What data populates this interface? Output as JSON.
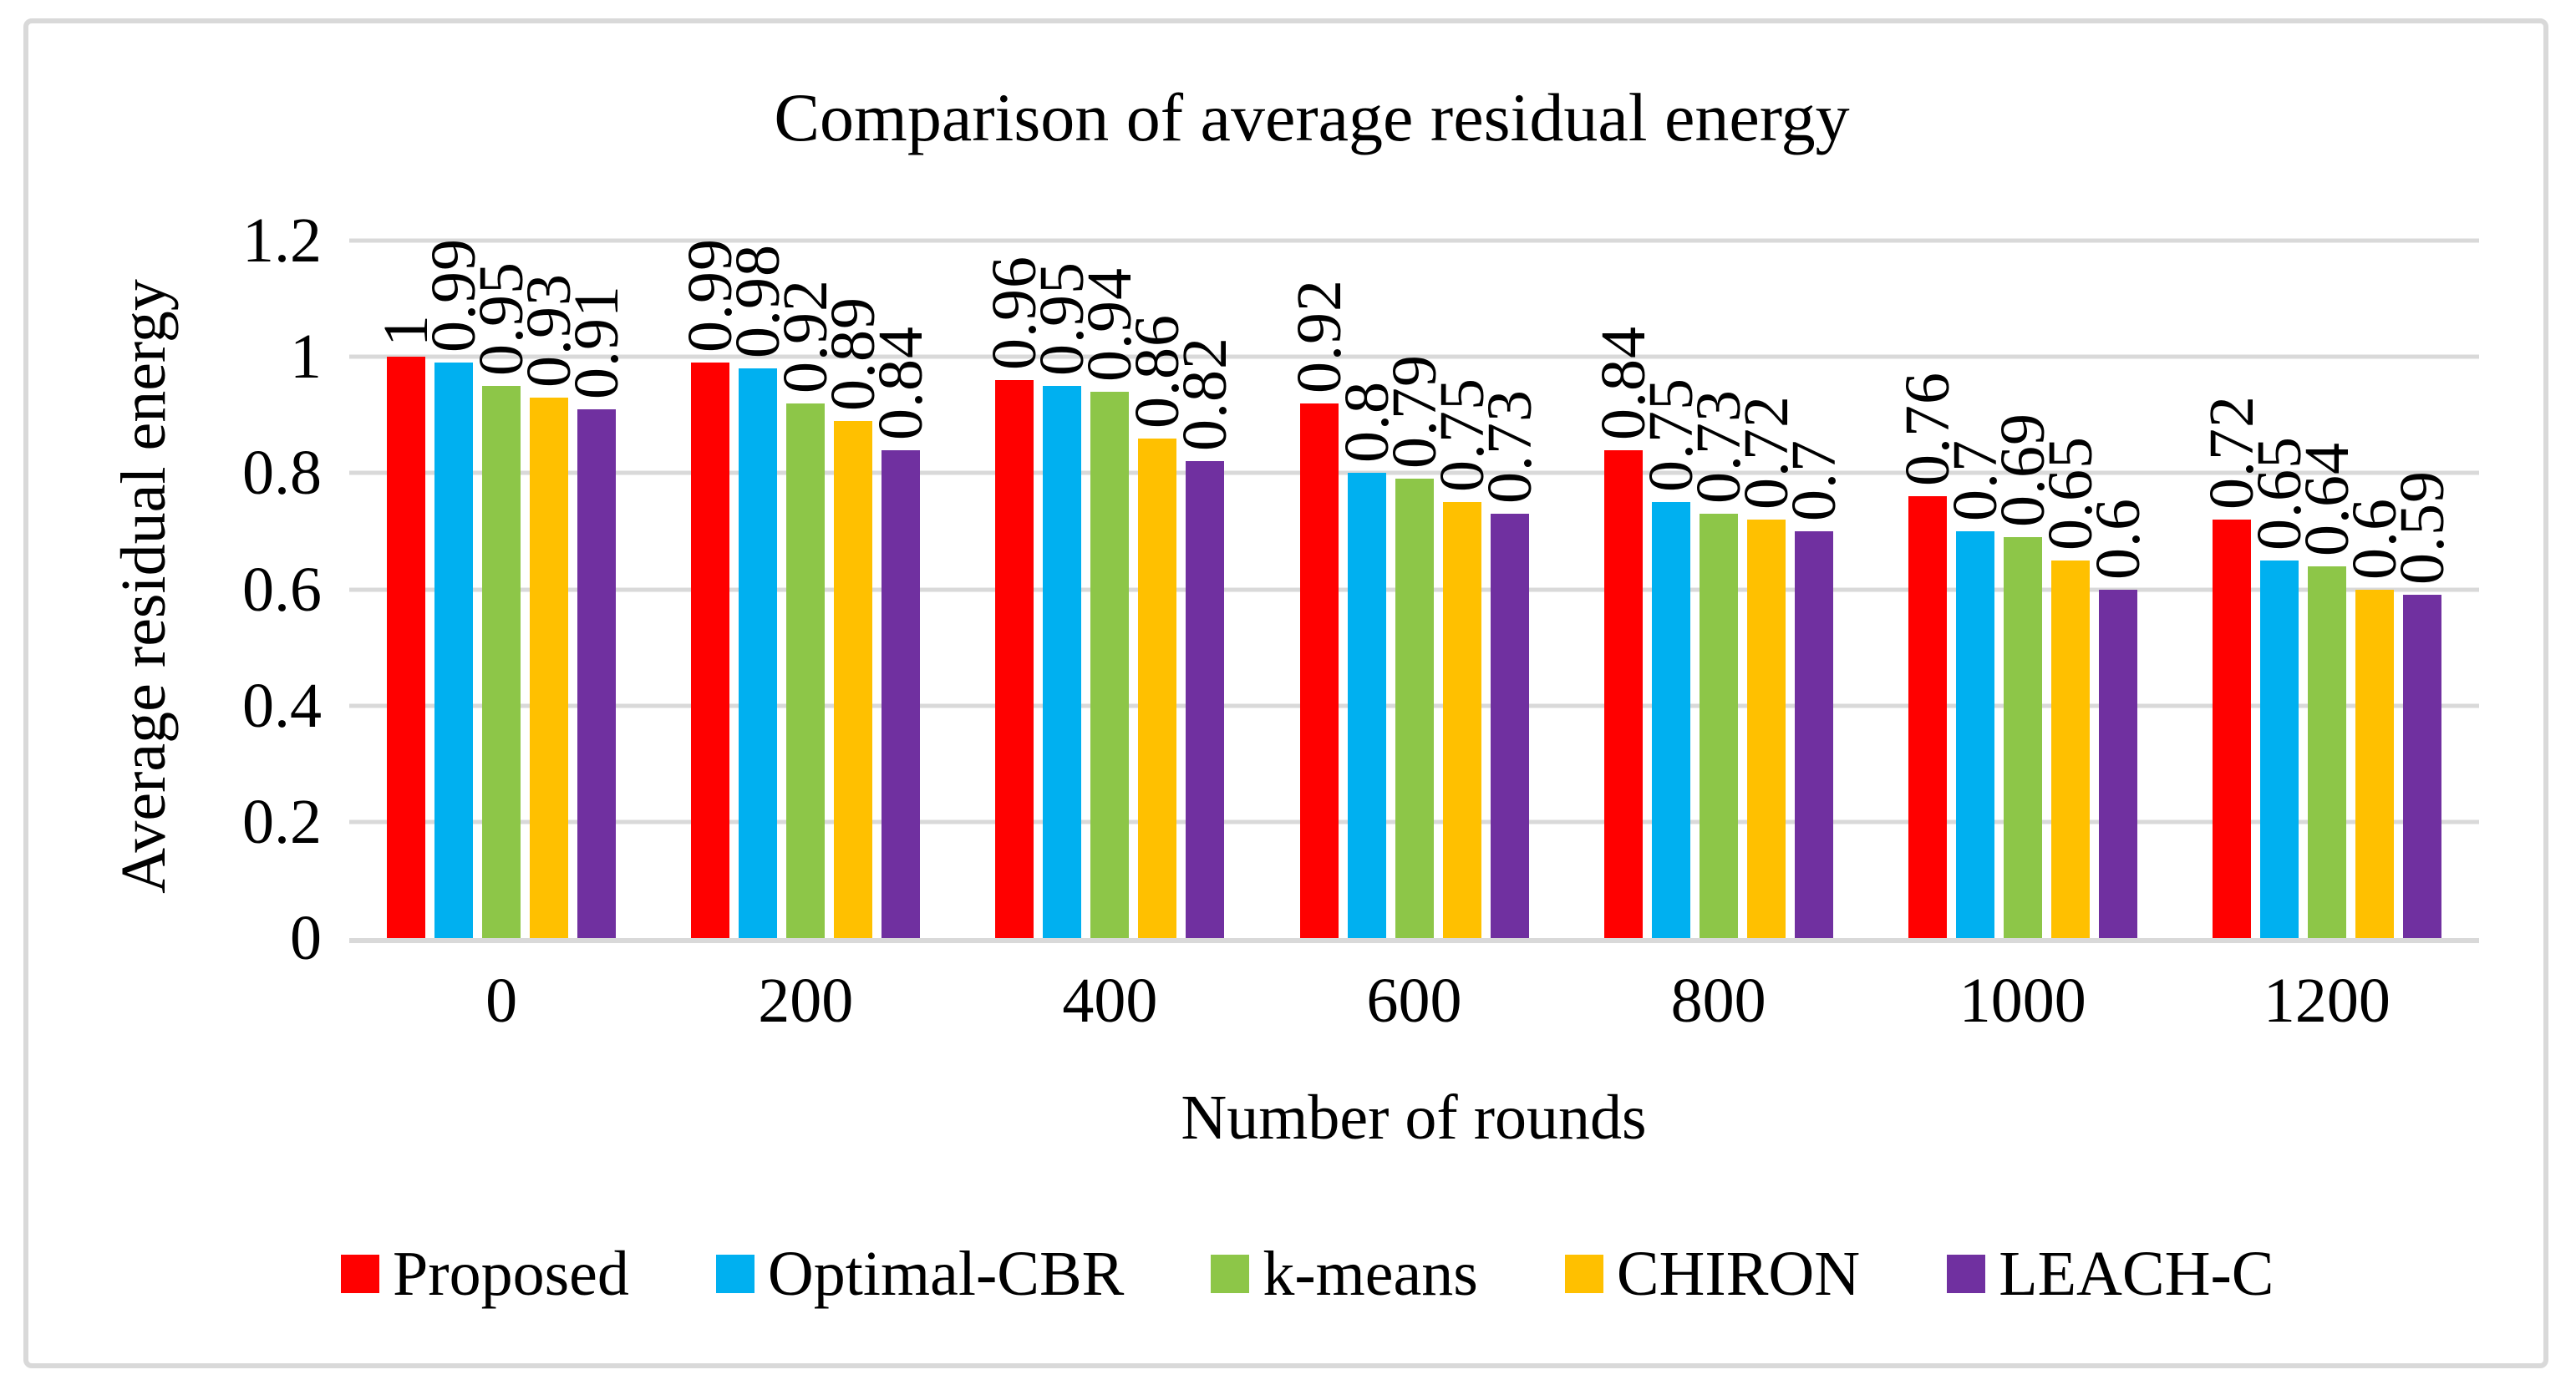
{
  "title": "Comparison of average residual energy",
  "y_axis": {
    "title": "Average residual energy",
    "ticks": [
      "1.2",
      "1",
      "0.8",
      "0.6",
      "0.4",
      "0.2",
      "0"
    ],
    "max": 1.2
  },
  "x_axis": {
    "title": "Number of rounds",
    "ticks": [
      "0",
      "200",
      "400",
      "600",
      "800",
      "1000",
      "1200"
    ]
  },
  "colors": {
    "grid": "#D9D9D9",
    "series": [
      "#FF0000",
      "#00B0F0",
      "#8DC648",
      "#FFC000",
      "#7030A0"
    ]
  },
  "legend": [
    "Proposed",
    "Optimal-CBR",
    "k-means",
    "CHIRON",
    "LEACH-C"
  ],
  "chart_data": {
    "type": "bar",
    "title": "Comparison of average residual energy",
    "xlabel": "Number of rounds",
    "ylabel": "Average residual energy",
    "categories": [
      0,
      200,
      400,
      600,
      800,
      1000,
      1200
    ],
    "series": [
      {
        "name": "Proposed",
        "color": "#FF0000",
        "values": [
          1,
          0.99,
          0.96,
          0.92,
          0.84,
          0.76,
          0.72
        ],
        "labels": [
          "1",
          "0.99",
          "0.96",
          "0.92",
          "0.84",
          "0.76",
          "0.72"
        ]
      },
      {
        "name": "Optimal-CBR",
        "color": "#00B0F0",
        "values": [
          0.99,
          0.98,
          0.95,
          0.8,
          0.75,
          0.7,
          0.65
        ],
        "labels": [
          "0.99",
          "0.98",
          "0.95",
          "0.8",
          "0.75",
          "0.7",
          "0.65"
        ]
      },
      {
        "name": "k-means",
        "color": "#8DC648",
        "values": [
          0.95,
          0.92,
          0.94,
          0.79,
          0.73,
          0.69,
          0.64
        ],
        "labels": [
          "0.95",
          "0.92",
          "0.94",
          "0.79",
          "0.73",
          "0.69",
          "0.64"
        ]
      },
      {
        "name": "CHIRON",
        "color": "#FFC000",
        "values": [
          0.93,
          0.89,
          0.86,
          0.75,
          0.72,
          0.65,
          0.6
        ],
        "labels": [
          "0.93",
          "0.89",
          "0.86",
          "0.75",
          "0.72",
          "0.65",
          "0.6"
        ]
      },
      {
        "name": "LEACH-C",
        "color": "#7030A0",
        "values": [
          0.91,
          0.84,
          0.82,
          0.73,
          0.7,
          0.6,
          0.59
        ],
        "labels": [
          "0.91",
          "0.84",
          "0.82",
          "0.73",
          "0.7",
          "0.6",
          "0.59"
        ]
      }
    ],
    "ylim": [
      0,
      1.2
    ],
    "grid": true,
    "legend_position": "bottom",
    "data_labels": "rotated-vertical"
  }
}
